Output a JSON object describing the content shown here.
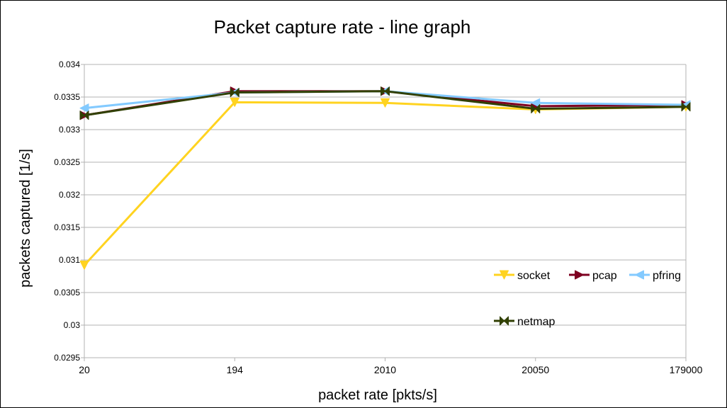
{
  "chart_data": {
    "type": "line",
    "title": "Packet capture rate - line graph",
    "xlabel": "packet rate [pkts/s]",
    "ylabel": "packets captured [1/s]",
    "categories": [
      "20",
      "194",
      "2010",
      "20050",
      "179000"
    ],
    "ylim": [
      0.0295,
      0.034
    ],
    "yticks": [
      "0.0295",
      "0.03",
      "0.0305",
      "0.031",
      "0.0315",
      "0.032",
      "0.0325",
      "0.033",
      "0.0335",
      "0.034"
    ],
    "grid": true,
    "legend_position": "bottom-right",
    "series": [
      {
        "name": "socket",
        "color": "#ffd320",
        "marker": "triangle-down",
        "values": [
          0.03092,
          0.03342,
          0.03341,
          0.03331,
          0.03335
        ]
      },
      {
        "name": "pcap",
        "color": "#7e0021",
        "marker": "triangle-right",
        "values": [
          0.03322,
          0.03359,
          0.03359,
          0.03336,
          0.03338
        ]
      },
      {
        "name": "pfring",
        "color": "#83caff",
        "marker": "triangle-left",
        "values": [
          0.03333,
          0.03357,
          0.03359,
          0.03341,
          0.03338
        ]
      },
      {
        "name": "netmap",
        "color": "#314004",
        "marker": "bowtie",
        "values": [
          0.03322,
          0.03357,
          0.03359,
          0.03332,
          0.03335
        ]
      }
    ]
  }
}
